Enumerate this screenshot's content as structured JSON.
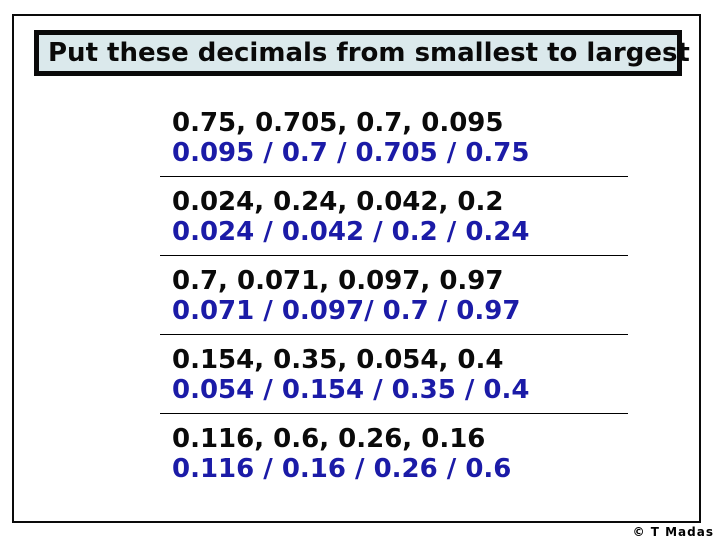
{
  "title": "Put these decimals from smallest to largest",
  "copyright": "© T Madas",
  "colors": {
    "answer_blue": "#1b1ba7",
    "title_background": "#dbe9ec",
    "frame_border": "#000000"
  },
  "problems": [
    {
      "question": "0.75, 0.705, 0.7, 0.095",
      "answer": "0.095 / 0.7 / 0.705 / 0.75"
    },
    {
      "question": "0.024, 0.24, 0.042, 0.2",
      "answer": "0.024 / 0.042 / 0.2 / 0.24"
    },
    {
      "question": "0.7, 0.071, 0.097, 0.97",
      "answer": "0.071 / 0.097/ 0.7 / 0.97"
    },
    {
      "question": "0.154, 0.35, 0.054, 0.4",
      "answer": "0.054 / 0.154 / 0.35 / 0.4"
    },
    {
      "question": "0.116, 0.6, 0.26, 0.16",
      "answer": "0.116 / 0.16 / 0.26 / 0.6"
    }
  ]
}
